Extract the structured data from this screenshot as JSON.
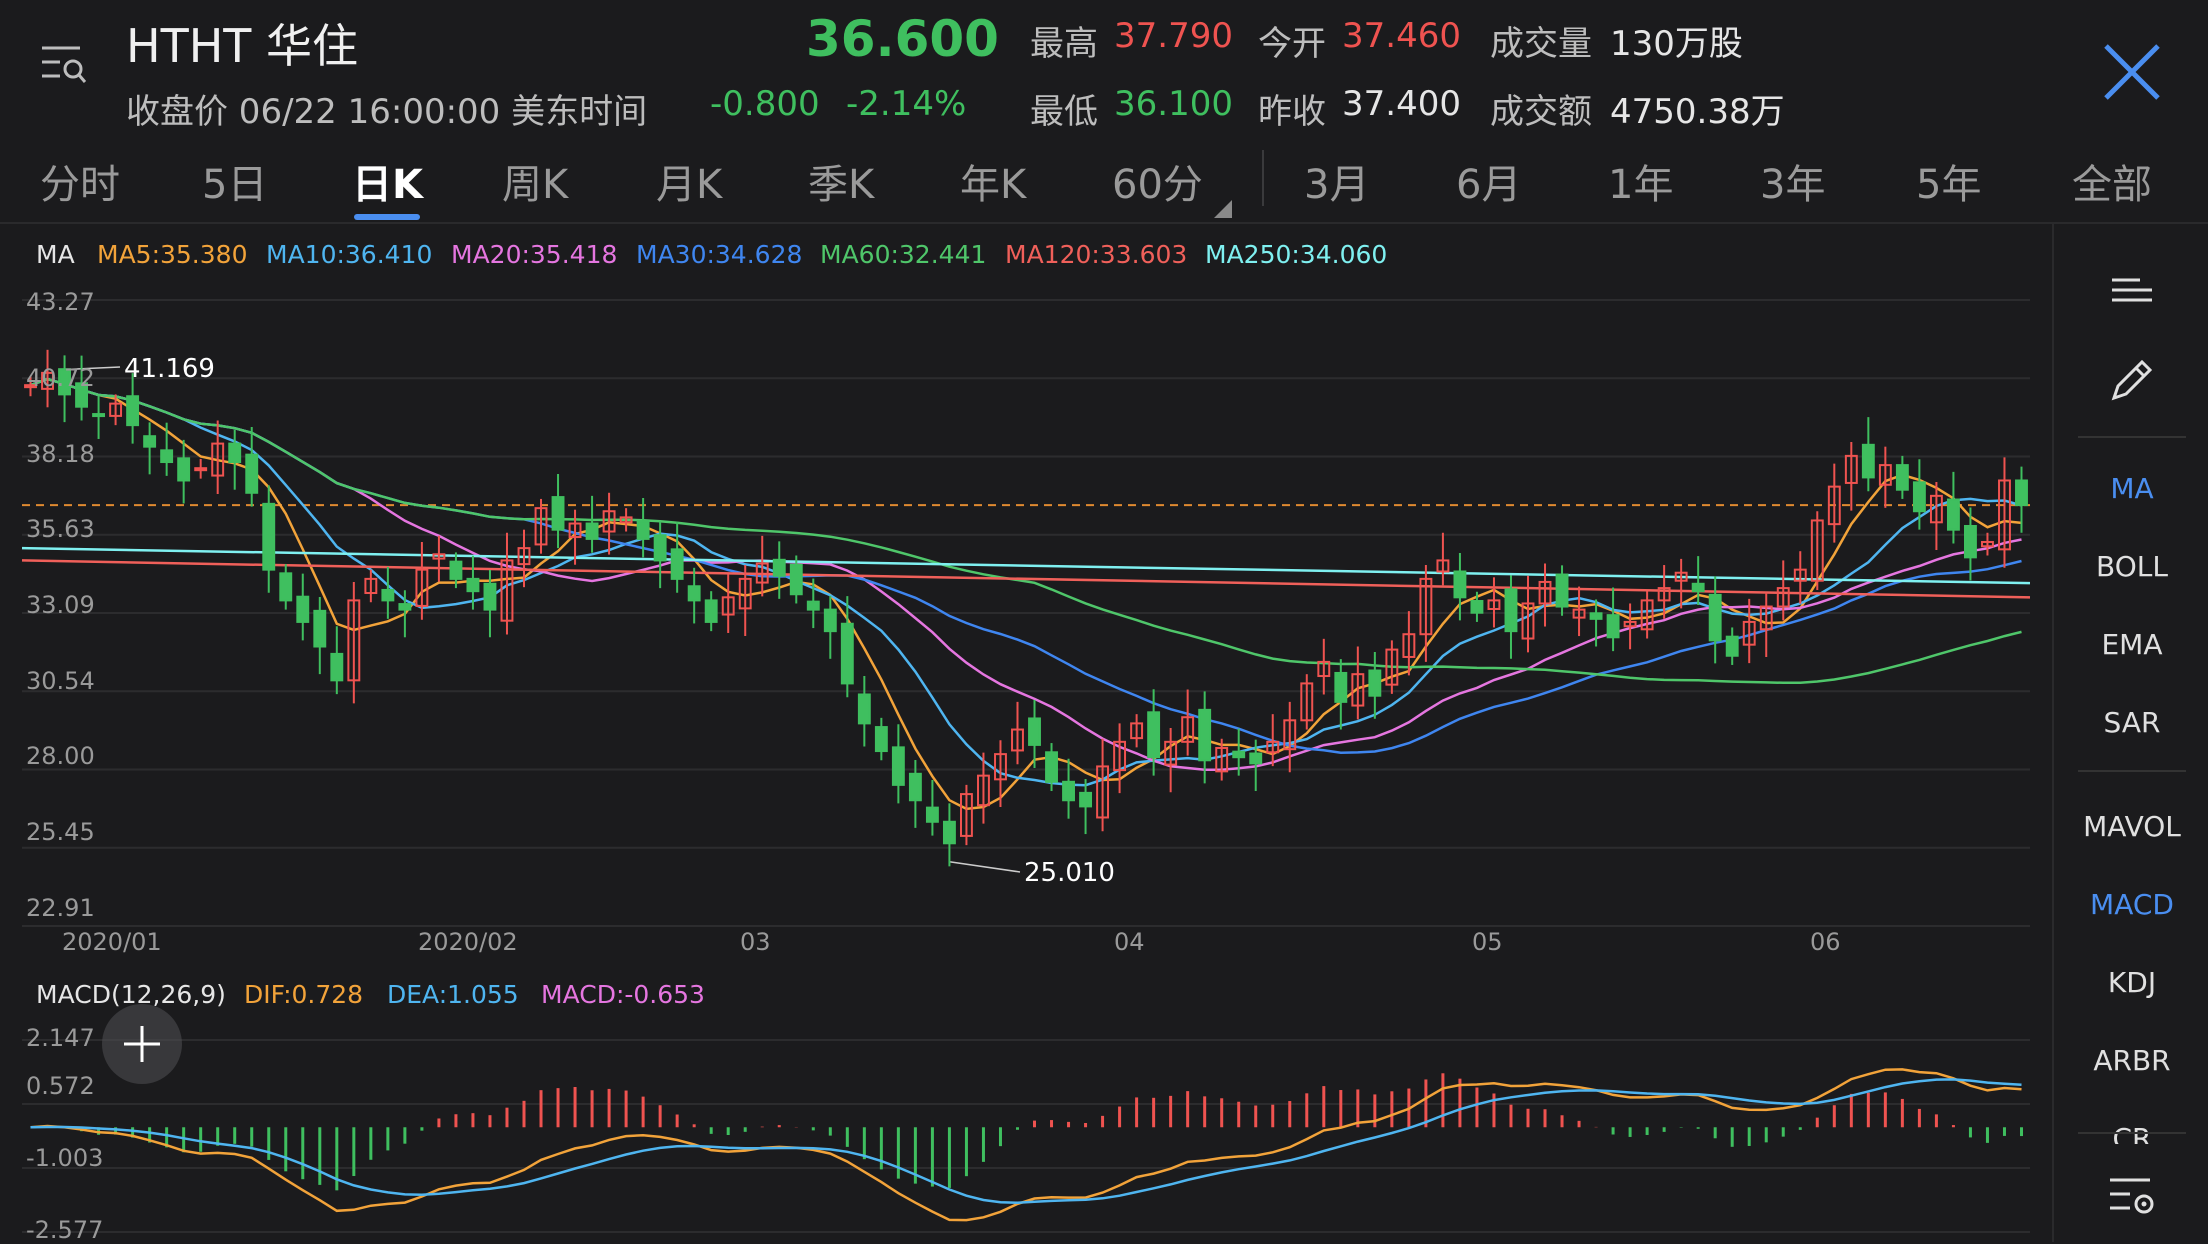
{
  "header": {
    "ticker": "HTHT 华住",
    "close_label": "收盘价 06/22 16:00:00 美东时间",
    "price": "36.600",
    "change": "-0.800",
    "change_pct": "-2.14%",
    "high_label": "最高",
    "high_value": "37.790",
    "open_label": "今开",
    "open_value": "37.460",
    "volume_label": "成交量",
    "volume_value": "130万股",
    "low_label": "最低",
    "low_value": "36.100",
    "prev_close_label": "昨收",
    "prev_close_value": "37.400",
    "turnover_label": "成交额",
    "turnover_value": "4750.38万"
  },
  "tabs": [
    "分时",
    "5日",
    "日K",
    "周K",
    "月K",
    "季K",
    "年K",
    "60分",
    "3月",
    "6月",
    "1年",
    "3年",
    "5年",
    "全部"
  ],
  "active_tab": "日K",
  "sidebar": {
    "items": [
      "MA",
      "BOLL",
      "EMA",
      "SAR",
      "MAVOL",
      "MACD",
      "KDJ",
      "ARBR",
      "CR"
    ],
    "active": [
      "MA",
      "MACD"
    ]
  },
  "ma_legend": {
    "title": "MA",
    "items": [
      {
        "label": "MA5:35.380",
        "color": "#f2a33a"
      },
      {
        "label": "MA10:36.410",
        "color": "#4fb5f0"
      },
      {
        "label": "MA20:35.418",
        "color": "#e576e0"
      },
      {
        "label": "MA30:34.628",
        "color": "#3f86f0"
      },
      {
        "label": "MA60:32.441",
        "color": "#4fc66a"
      },
      {
        "label": "MA120:33.603",
        "color": "#f0605a"
      },
      {
        "label": "MA250:34.060",
        "color": "#7ff0f0"
      }
    ]
  },
  "price_axis": [
    "43.27",
    "40.72",
    "38.18",
    "35.63",
    "33.09",
    "30.54",
    "28.00",
    "25.45",
    "22.91"
  ],
  "time_axis": [
    "2020/01",
    "2020/02",
    "03",
    "04",
    "05",
    "06"
  ],
  "annotations": {
    "high": "41.169",
    "low": "25.010"
  },
  "macd_legend": {
    "title": "MACD(12,26,9)",
    "dif": "DIF:0.728",
    "dea": "DEA:1.055",
    "macd": "MACD:-0.653"
  },
  "macd_axis": [
    "2.147",
    "0.572",
    "-1.003",
    "-2.577"
  ],
  "colors": {
    "up": "#ef5350",
    "down": "#3fbf5f",
    "accent": "#4a8ef0",
    "background": "#1b1b1d"
  },
  "chart_data": {
    "type": "candlestick",
    "price_range": [
      22.91,
      43.27
    ],
    "macd_range": [
      -2.577,
      2.147
    ],
    "months": [
      "2020/01",
      "2020/02",
      "03",
      "04",
      "05",
      "06"
    ],
    "approx_closes": [
      40.5,
      40.9,
      40.2,
      39.8,
      39.5,
      39.9,
      39.2,
      38.5,
      38.0,
      37.4,
      37.8,
      38.6,
      38.0,
      37.0,
      34.5,
      33.5,
      32.8,
      32.0,
      30.9,
      33.5,
      34.2,
      33.5,
      33.2,
      34.5,
      35.0,
      34.2,
      33.8,
      33.2,
      34.8,
      35.2,
      36.5,
      35.8,
      36.0,
      35.5,
      36.4,
      36.2,
      35.5,
      34.8,
      34.2,
      33.5,
      32.8,
      33.6,
      34.2,
      34.7,
      34.3,
      33.7,
      33.2,
      32.5,
      30.8,
      29.5,
      28.6,
      27.5,
      27.0,
      26.3,
      25.6,
      27.2,
      27.8,
      28.5,
      29.3,
      28.8,
      27.6,
      27.0,
      26.8,
      28.1,
      28.9,
      29.5,
      28.4,
      28.9,
      29.7,
      28.3,
      28.7,
      28.4,
      28.2,
      28.9,
      29.6,
      30.8,
      31.5,
      30.2,
      31.1,
      30.4,
      31.9,
      32.4,
      34.2,
      34.8,
      33.6,
      33.1,
      33.5,
      32.5,
      33.4,
      34.1,
      33.3,
      33.2,
      32.9,
      32.3,
      32.8,
      33.5,
      33.9,
      34.4,
      33.8,
      32.2,
      31.7,
      32.8,
      33.3,
      33.9,
      34.5,
      36.1,
      37.2,
      38.2,
      37.5,
      37.9,
      37.1,
      36.4,
      36.9,
      35.8,
      34.9,
      35.4,
      37.4,
      36.6
    ],
    "macd_bars_approx": "red above zero roughly Feb–early Mar and Apr–mid May, green below zero mid Jan–Feb and mid Mar, turning red again in June then green at end"
  }
}
